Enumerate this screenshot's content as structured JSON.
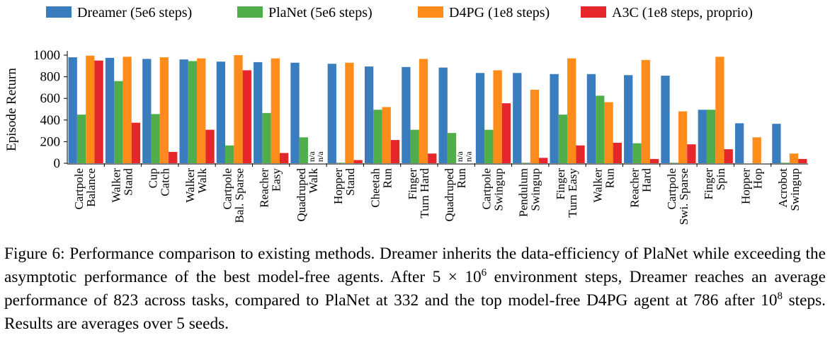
{
  "chart_data": {
    "type": "bar",
    "ylabel": "Episode Return",
    "categories": [
      [
        "Cartpole",
        "Balance"
      ],
      [
        "Walker",
        "Stand"
      ],
      [
        "Cup",
        "Catch"
      ],
      [
        "Walker",
        "Walk"
      ],
      [
        "Cartpole",
        "Bal. Sparse"
      ],
      [
        "Reacher",
        "Easy"
      ],
      [
        "Quadruped",
        "Walk"
      ],
      [
        "Hopper",
        "Stand"
      ],
      [
        "Cheetah",
        "Run"
      ],
      [
        "Finger",
        "Turn  Hard"
      ],
      [
        "Quadruped",
        "Run"
      ],
      [
        "Cartpole",
        "Swingup"
      ],
      [
        "Pendulum",
        "Swingup"
      ],
      [
        "Finger",
        "Turn  Easy"
      ],
      [
        "Walker",
        "Run"
      ],
      [
        "Reacher",
        "Hard"
      ],
      [
        "Cartpole",
        "Swi. Sparse"
      ],
      [
        "Finger",
        "Spin"
      ],
      [
        "Hopper",
        "Hop"
      ],
      [
        "Acrobot",
        "Swingup"
      ]
    ],
    "series": [
      {
        "name": "Dreamer (5e6 steps)",
        "color": "#3a7dbf",
        "values": [
          980,
          975,
          965,
          960,
          940,
          935,
          930,
          920,
          895,
          890,
          885,
          835,
          835,
          825,
          825,
          815,
          810,
          495,
          370,
          365
        ]
      },
      {
        "name": "PlaNet (5e6 steps)",
        "color": "#4fae4a",
        "values": [
          450,
          760,
          455,
          945,
          165,
          465,
          240,
          5,
          495,
          310,
          280,
          310,
          5,
          450,
          625,
          185,
          5,
          495,
          0,
          5
        ]
      },
      {
        "name": "D4PG (1e8 steps)",
        "color": "#ff8c1a",
        "values": [
          995,
          985,
          980,
          970,
          1000,
          970,
          null,
          930,
          520,
          965,
          null,
          860,
          680,
          970,
          565,
          955,
          480,
          985,
          240,
          90
        ],
        "value_labels": [
          null,
          null,
          null,
          null,
          null,
          null,
          "n/a",
          null,
          null,
          null,
          "n/a",
          null,
          null,
          null,
          null,
          null,
          null,
          null,
          null,
          null
        ]
      },
      {
        "name": "A3C (1e8 steps, proprio)",
        "color": "#e5262b",
        "values": [
          950,
          375,
          105,
          310,
          860,
          95,
          null,
          30,
          215,
          90,
          null,
          555,
          50,
          165,
          190,
          40,
          175,
          130,
          0,
          40
        ],
        "value_labels": [
          null,
          null,
          null,
          null,
          null,
          null,
          "n/a",
          null,
          null,
          null,
          "n/a",
          null,
          null,
          null,
          null,
          null,
          null,
          null,
          null,
          null
        ]
      }
    ],
    "ylim": [
      0,
      1000
    ],
    "yticks": [
      0,
      200,
      400,
      600,
      800,
      1000
    ],
    "grid": false,
    "legend": "top"
  },
  "caption": [
    "Figure 6: Performance comparison to existing methods. Dreamer inherits the data-efficiency of PlaNet while exceeding the asymptotic performance of the best model-free agents. After 5 × 10",
    "6",
    " environment steps, Dreamer reaches an average performance of 823 across tasks, compared to PlaNet at 332 and the top model-free D4PG agent at 786 after 10",
    "8",
    " steps. Results are averages over 5 seeds."
  ]
}
